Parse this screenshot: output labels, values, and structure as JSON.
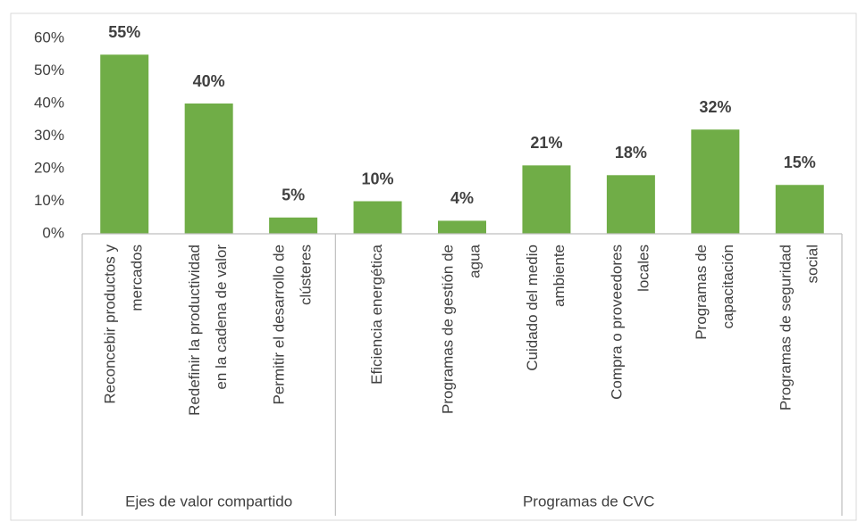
{
  "chart_data": {
    "type": "bar",
    "groups": [
      {
        "name": "Ejes de valor compartido",
        "categories": [
          [
            "Reconcebir productos y",
            "mercados"
          ],
          [
            "Redefinir la productividad",
            "en la cadena de valor"
          ],
          [
            "Permitir el desarrollo de",
            "clústeres"
          ]
        ]
      },
      {
        "name": "Programas de CVC",
        "categories": [
          [
            "Eficiencia energética"
          ],
          [
            "Programas de gestión de",
            "agua"
          ],
          [
            "Cuidado del medio",
            "ambiente"
          ],
          [
            "Compra o proveedores",
            "locales"
          ],
          [
            "Programas de",
            "capacitación"
          ],
          [
            "Programas de seguridad",
            "social"
          ]
        ]
      }
    ],
    "values": [
      55,
      40,
      5,
      10,
      4,
      21,
      18,
      32,
      15
    ],
    "value_labels": [
      "55%",
      "40%",
      "5%",
      "10%",
      "4%",
      "21%",
      "18%",
      "32%",
      "15%"
    ],
    "color": "#70ad47",
    "ylim": [
      0,
      60
    ],
    "yticks": [
      {
        "value": 0,
        "label": "0%"
      },
      {
        "value": 10,
        "label": "10%"
      },
      {
        "value": 20,
        "label": "20%"
      },
      {
        "value": 30,
        "label": "30%"
      },
      {
        "value": 40,
        "label": "40%"
      },
      {
        "value": 50,
        "label": "50%"
      },
      {
        "value": 60,
        "label": "60%"
      }
    ],
    "grid": false
  }
}
